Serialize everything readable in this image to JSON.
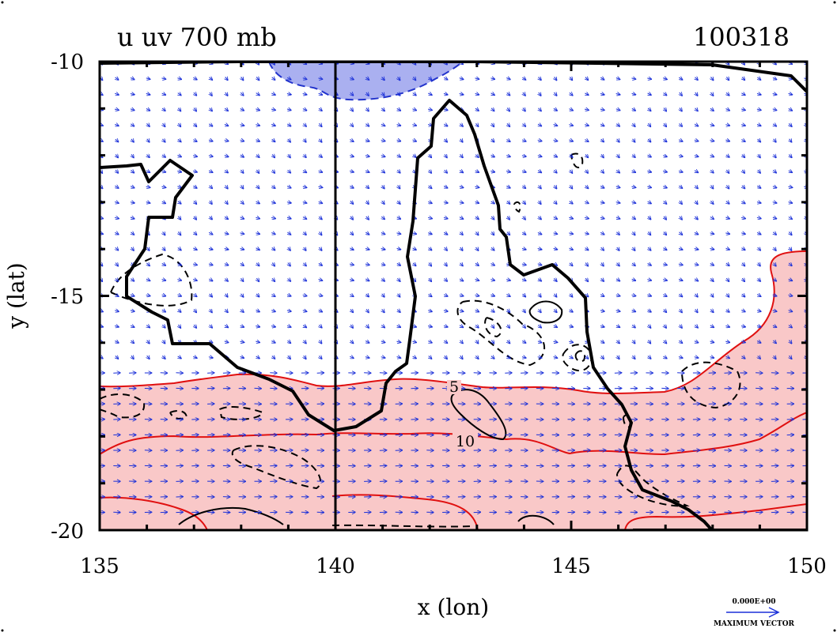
{
  "title_left": "u uv 700 mb",
  "title_right": "100318",
  "x_axis": {
    "label": "x (lon)",
    "range": [
      135,
      150
    ],
    "ticks": [
      135,
      140,
      145,
      150
    ],
    "tick_labels": [
      "135",
      "140",
      "145",
      "150"
    ]
  },
  "y_axis": {
    "label": "y (lat)",
    "range": [
      -20,
      -10
    ],
    "ticks": [
      -10,
      -15,
      -20
    ],
    "tick_labels": [
      "-10",
      "-15",
      "-20"
    ]
  },
  "contour_labels": [
    "5",
    "10"
  ],
  "reference_vector": {
    "value_label": "0.000E+00",
    "caption": "MAXIMUM VECTOR"
  },
  "colors": {
    "positive_fill": "#f9c8c8",
    "negative_fill": "#aab0f0",
    "positive_contour": "#e01010",
    "negative_contour": "#2233cc",
    "vectors": "#1a2fd8",
    "coastline": "#000000"
  },
  "chart_data": {
    "type": "heatmap",
    "field": "u wind component with uv vectors at 700 mb",
    "contour_levels_labeled": [
      5,
      10
    ],
    "grid_meridian": 140,
    "xlim": [
      135,
      150
    ],
    "ylim": [
      -20,
      -10
    ]
  }
}
